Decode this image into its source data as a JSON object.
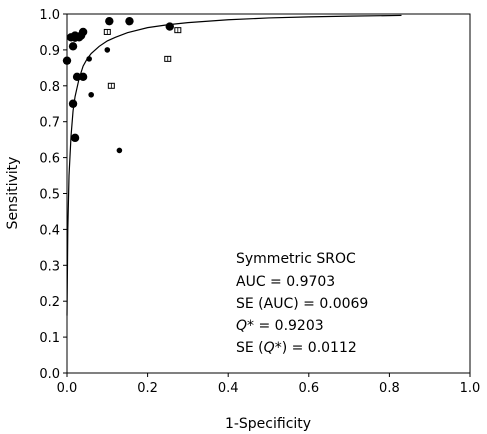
{
  "chart_data": {
    "type": "scatter",
    "title": "",
    "xlabel": "1-Specificity",
    "ylabel": "Sensitivity",
    "xlim": [
      0,
      1
    ],
    "ylim": [
      0,
      1
    ],
    "xticks": [
      "0.0",
      "0.2",
      "0.4",
      "0.6",
      "0.8",
      "1.0"
    ],
    "yticks": [
      "0.0",
      "0.1",
      "0.2",
      "0.3",
      "0.4",
      "0.5",
      "0.6",
      "0.7",
      "0.8",
      "0.9",
      "1.0"
    ],
    "grid": false,
    "curve": {
      "name": "Symmetric SROC",
      "x": [
        0.0,
        0.002,
        0.005,
        0.01,
        0.015,
        0.02,
        0.03,
        0.04,
        0.05,
        0.06,
        0.08,
        0.1,
        0.12,
        0.15,
        0.2,
        0.25,
        0.3,
        0.4,
        0.5,
        0.6,
        0.7,
        0.83
      ],
      "y": [
        0.16,
        0.4,
        0.55,
        0.66,
        0.73,
        0.77,
        0.82,
        0.855,
        0.875,
        0.89,
        0.91,
        0.925,
        0.935,
        0.948,
        0.962,
        0.97,
        0.976,
        0.984,
        0.989,
        0.992,
        0.994,
        0.996
      ]
    },
    "large_points": [
      {
        "x": 0.0,
        "y": 0.87
      },
      {
        "x": 0.01,
        "y": 0.935
      },
      {
        "x": 0.02,
        "y": 0.94
      },
      {
        "x": 0.03,
        "y": 0.935
      },
      {
        "x": 0.035,
        "y": 0.94
      },
      {
        "x": 0.04,
        "y": 0.95
      },
      {
        "x": 0.015,
        "y": 0.91
      },
      {
        "x": 0.025,
        "y": 0.825
      },
      {
        "x": 0.04,
        "y": 0.825
      },
      {
        "x": 0.015,
        "y": 0.75
      },
      {
        "x": 0.02,
        "y": 0.655
      },
      {
        "x": 0.105,
        "y": 0.98
      },
      {
        "x": 0.155,
        "y": 0.98
      },
      {
        "x": 0.255,
        "y": 0.965
      }
    ],
    "small_points": [
      {
        "x": 0.055,
        "y": 0.875
      },
      {
        "x": 0.06,
        "y": 0.775
      },
      {
        "x": 0.1,
        "y": 0.9
      },
      {
        "x": 0.13,
        "y": 0.62
      },
      {
        "x": 0.02,
        "y": 0.93
      }
    ],
    "open_points": [
      {
        "x": 0.1,
        "y": 0.95
      },
      {
        "x": 0.11,
        "y": 0.8
      },
      {
        "x": 0.25,
        "y": 0.875
      },
      {
        "x": 0.275,
        "y": 0.955
      }
    ],
    "annotations": {
      "method": "Symmetric SROC",
      "auc": "AUC = 0.9703",
      "se_auc": "SE (AUC) = 0.0069",
      "q_symbol": "Q",
      "q_value": "* = 0.9203",
      "se_q_prefix": "SE (",
      "se_q_value": "*) = 0.0112"
    }
  }
}
